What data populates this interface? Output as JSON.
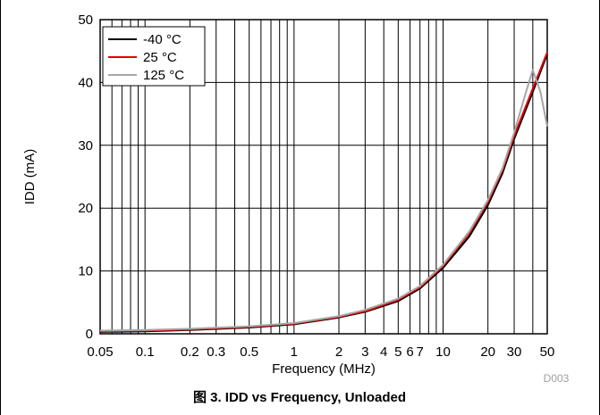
{
  "chart_data": {
    "type": "line",
    "caption": "图 3.  IDD vs Frequency, Unloaded",
    "figure_code": "D003",
    "xlabel": "Frequency (MHz)",
    "ylabel": "IDD (mA)",
    "x_scale": "log",
    "xlim": [
      0.05,
      50
    ],
    "ylim": [
      0,
      50
    ],
    "grid": true,
    "legend_position": "top-left",
    "x_ticks": [
      {
        "value": 0.05,
        "label": "0.05"
      },
      {
        "value": 0.1,
        "label": "0.1"
      },
      {
        "value": 0.2,
        "label": "0.2"
      },
      {
        "value": 0.3,
        "label": "0.3"
      },
      {
        "value": 0.5,
        "label": "0.5"
      },
      {
        "value": 1,
        "label": "1"
      },
      {
        "value": 2,
        "label": "2"
      },
      {
        "value": 3,
        "label": "3"
      },
      {
        "value": 4,
        "label": "4"
      },
      {
        "value": 5,
        "label": "5"
      },
      {
        "value": 6,
        "label": "6"
      },
      {
        "value": 7,
        "label": "7"
      },
      {
        "value": 10,
        "label": "10"
      },
      {
        "value": 20,
        "label": "20"
      },
      {
        "value": 30,
        "label": "30"
      },
      {
        "value": 50,
        "label": "50"
      }
    ],
    "y_ticks": [
      {
        "value": 0,
        "label": "0"
      },
      {
        "value": 10,
        "label": "10"
      },
      {
        "value": 20,
        "label": "20"
      },
      {
        "value": 30,
        "label": "30"
      },
      {
        "value": 40,
        "label": "40"
      },
      {
        "value": 50,
        "label": "50"
      }
    ],
    "series": [
      {
        "name": "-40 °C",
        "color": "#000000",
        "x": [
          0.05,
          0.1,
          0.2,
          0.5,
          1,
          2,
          3,
          5,
          7,
          10,
          15,
          20,
          25,
          30,
          40,
          50
        ],
        "y": [
          0.3,
          0.4,
          0.6,
          1.0,
          1.5,
          2.6,
          3.5,
          5.2,
          7.2,
          10.5,
          15.5,
          20.5,
          25.5,
          31.0,
          38.5,
          44.5
        ]
      },
      {
        "name": "25 °C",
        "color": "#e00000",
        "x": [
          0.05,
          0.1,
          0.2,
          0.5,
          1,
          2,
          3,
          5,
          7,
          10,
          15,
          20,
          25,
          30,
          40,
          50
        ],
        "y": [
          0.4,
          0.5,
          0.7,
          1.1,
          1.6,
          2.7,
          3.6,
          5.4,
          7.4,
          10.8,
          16.0,
          21.0,
          26.0,
          31.5,
          39.0,
          44.8
        ]
      },
      {
        "name": "125 °C",
        "color": "#a6a6a6",
        "x": [
          0.05,
          0.1,
          0.2,
          0.5,
          1,
          2,
          3,
          5,
          7,
          10,
          15,
          20,
          25,
          30,
          35,
          40,
          45,
          50
        ],
        "y": [
          0.5,
          0.6,
          0.8,
          1.2,
          1.7,
          2.8,
          3.8,
          5.6,
          7.6,
          11.0,
          16.3,
          21.3,
          26.3,
          32.0,
          37.5,
          42.0,
          38.5,
          33.0
        ]
      }
    ]
  }
}
